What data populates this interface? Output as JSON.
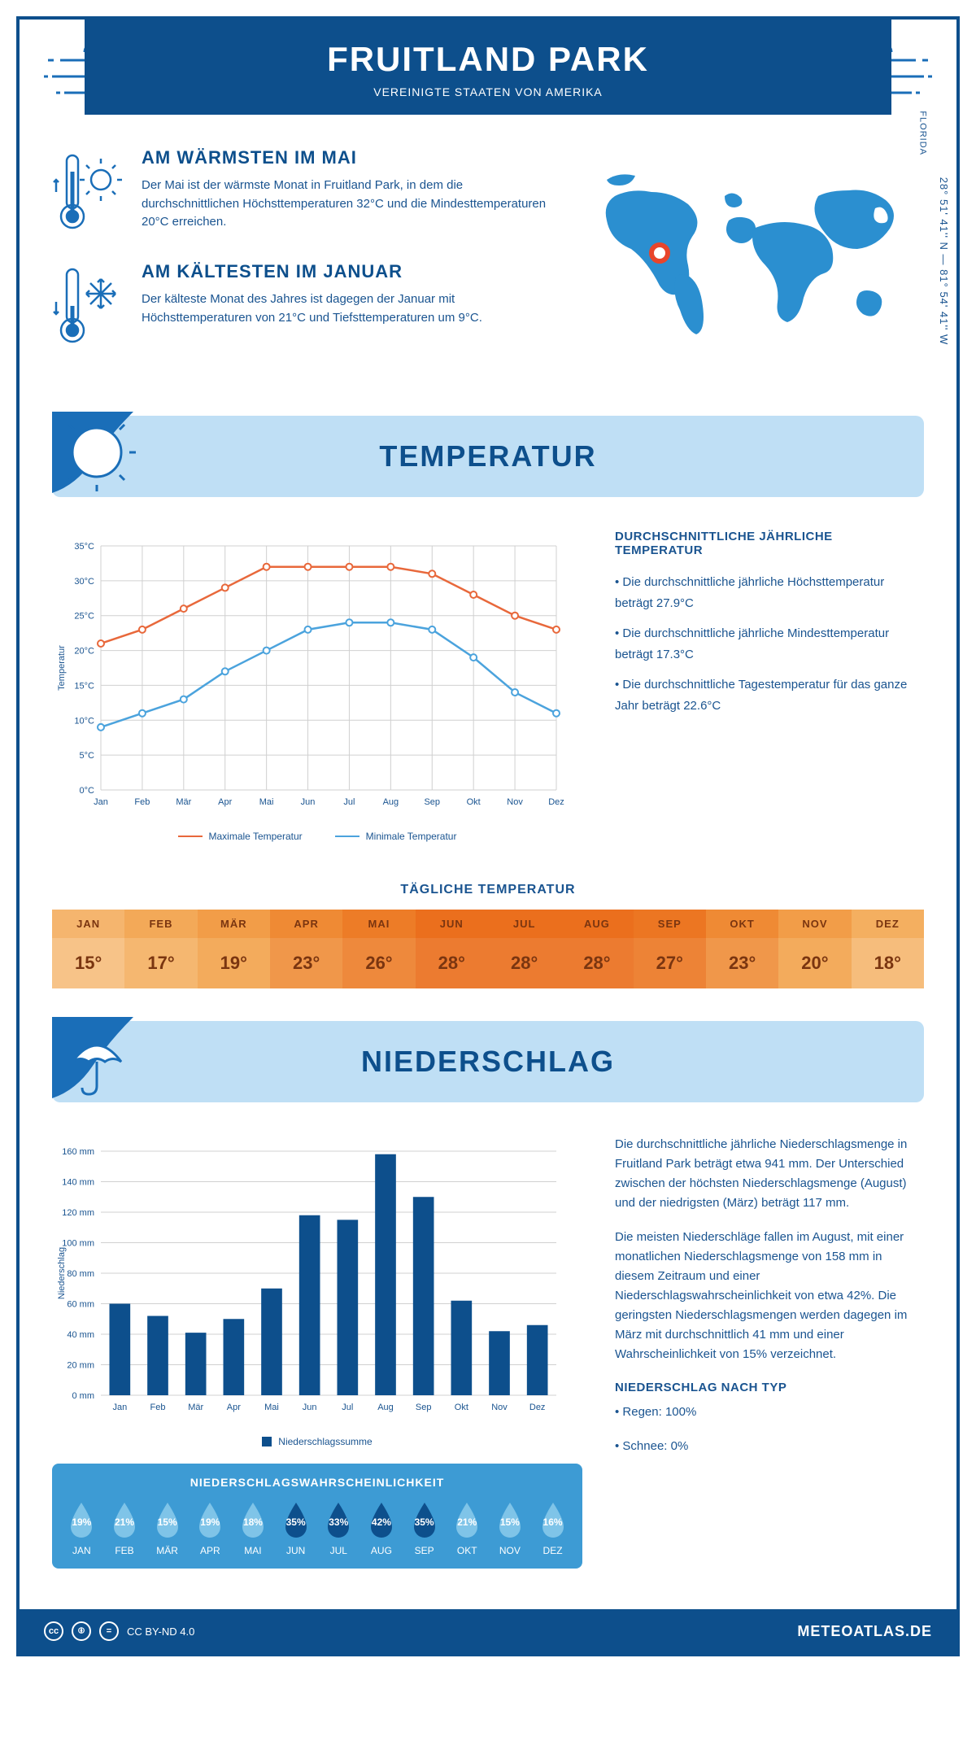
{
  "header": {
    "title": "FRUITLAND PARK",
    "subtitle": "VEREINIGTE STAATEN VON AMERIKA"
  },
  "coords": "28° 51' 41'' N — 81° 54' 41'' W",
  "region": "FLORIDA",
  "warm": {
    "title": "AM WÄRMSTEN IM MAI",
    "text": "Der Mai ist der wärmste Monat in Fruitland Park, in dem die durchschnittlichen Höchsttemperaturen 32°C und die Mindesttemperaturen 20°C erreichen."
  },
  "cold": {
    "title": "AM KÄLTESTEN IM JANUAR",
    "text": "Der kälteste Monat des Jahres ist dagegen der Januar mit Höchsttemperaturen von 21°C und Tiefsttemperaturen um 9°C."
  },
  "section1": "TEMPERATUR",
  "section2": "NIEDERSCHLAG",
  "temp_chart": {
    "type": "line",
    "months": [
      "Jan",
      "Feb",
      "Mär",
      "Apr",
      "Mai",
      "Jun",
      "Jul",
      "Aug",
      "Sep",
      "Okt",
      "Nov",
      "Dez"
    ],
    "max": [
      21,
      23,
      26,
      29,
      32,
      32,
      32,
      32,
      31,
      28,
      25,
      23
    ],
    "min": [
      9,
      11,
      13,
      17,
      20,
      23,
      24,
      24,
      23,
      19,
      14,
      11
    ],
    "max_color": "#e8683b",
    "min_color": "#4ba3dd",
    "ylabel": "Temperatur",
    "ylim": [
      0,
      35
    ],
    "ytick": 5,
    "grid_color": "#d0d0d0",
    "legend_max": "Maximale Temperatur",
    "legend_min": "Minimale Temperatur"
  },
  "temp_text": {
    "heading": "DURCHSCHNITTLICHE JÄHRLICHE TEMPERATUR",
    "b1": "• Die durchschnittliche jährliche Höchsttemperatur beträgt 27.9°C",
    "b2": "• Die durchschnittliche jährliche Mindesttemperatur beträgt 17.3°C",
    "b3": "• Die durchschnittliche Tagestemperatur für das ganze Jahr beträgt 22.6°C"
  },
  "daily_title": "TÄGLICHE TEMPERATUR",
  "daily": {
    "months": [
      "JAN",
      "FEB",
      "MÄR",
      "APR",
      "MAI",
      "JUN",
      "JUL",
      "AUG",
      "SEP",
      "OKT",
      "NOV",
      "DEZ"
    ],
    "values": [
      "15°",
      "17°",
      "19°",
      "23°",
      "26°",
      "28°",
      "28°",
      "28°",
      "27°",
      "23°",
      "20°",
      "18°"
    ],
    "h_colors": [
      "#f5b56e",
      "#f3a958",
      "#f29d48",
      "#ef8a34",
      "#ed7c27",
      "#eb6f1d",
      "#eb6f1d",
      "#eb6f1d",
      "#ec7622",
      "#ef8a34",
      "#f29d48",
      "#f4af60"
    ],
    "v_colors": [
      "#f7c388",
      "#f5b770",
      "#f3ab5c",
      "#f0974a",
      "#ee893c",
      "#ec7b30",
      "#ec7b30",
      "#ec7b30",
      "#ed8336",
      "#f0974a",
      "#f3ab5c",
      "#f6bd7c"
    ]
  },
  "precip_chart": {
    "type": "bar",
    "months": [
      "Jan",
      "Feb",
      "Mär",
      "Apr",
      "Mai",
      "Jun",
      "Jul",
      "Aug",
      "Sep",
      "Okt",
      "Nov",
      "Dez"
    ],
    "values": [
      60,
      52,
      41,
      50,
      70,
      118,
      115,
      158,
      130,
      62,
      42,
      46
    ],
    "bar_color": "#0d4f8c",
    "ylabel": "Niederschlag",
    "ylim": [
      0,
      160
    ],
    "ytick": 20,
    "legend": "Niederschlagssumme",
    "grid_color": "#d0d0d0"
  },
  "precip_text": {
    "p1": "Die durchschnittliche jährliche Niederschlagsmenge in Fruitland Park beträgt etwa 941 mm. Der Unterschied zwischen der höchsten Niederschlagsmenge (August) und der niedrigsten (März) beträgt 117 mm.",
    "p2": "Die meisten Niederschläge fallen im August, mit einer monatlichen Niederschlagsmenge von 158 mm in diesem Zeitraum und einer Niederschlagswahrscheinlichkeit von etwa 42%. Die geringsten Niederschlagsmengen werden dagegen im März mit durchschnittlich 41 mm und einer Wahrscheinlichkeit von 15% verzeichnet.",
    "type_h": "NIEDERSCHLAG NACH TYP",
    "type1": "• Regen: 100%",
    "type2": "• Schnee: 0%"
  },
  "prob": {
    "title": "NIEDERSCHLAGSWAHRSCHEINLICHKEIT",
    "months": [
      "JAN",
      "FEB",
      "MÄR",
      "APR",
      "MAI",
      "JUN",
      "JUL",
      "AUG",
      "SEP",
      "OKT",
      "NOV",
      "DEZ"
    ],
    "pct": [
      "19%",
      "21%",
      "15%",
      "19%",
      "18%",
      "35%",
      "33%",
      "42%",
      "35%",
      "21%",
      "15%",
      "16%"
    ],
    "dark": [
      false,
      false,
      false,
      false,
      false,
      true,
      true,
      true,
      true,
      false,
      false,
      false
    ],
    "light_color": "#7fc4e8",
    "dark_color": "#0d4f8c"
  },
  "footer": {
    "license": "CC BY-ND 4.0",
    "site": "METEOATLAS.DE"
  }
}
